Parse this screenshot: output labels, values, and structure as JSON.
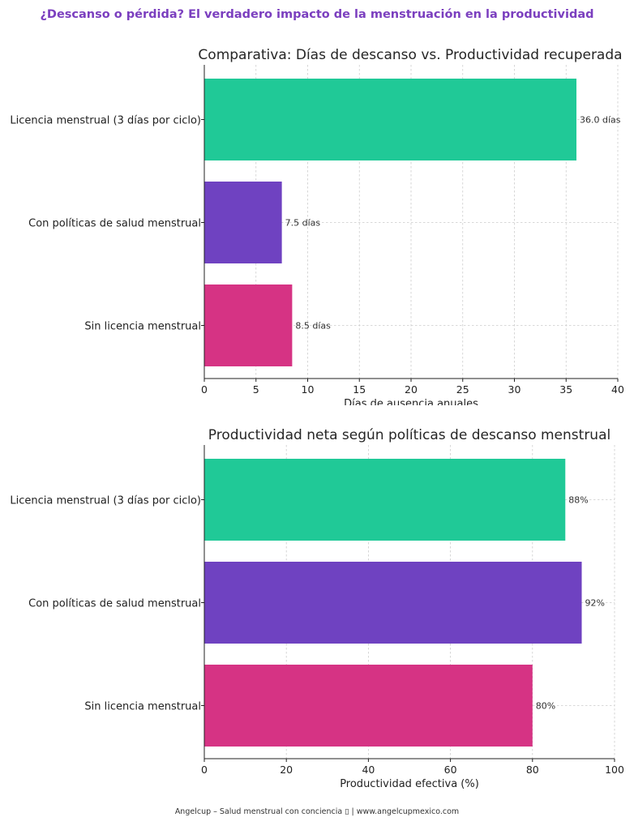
{
  "header": {
    "title": "¿Descanso o pérdida? El verdadero impacto de la menstruación en la productividad"
  },
  "footer": {
    "text": "Angelcup – Salud menstrual con conciencia ▯  |  www.angelcupmexico.com"
  },
  "colors": {
    "title": "#7b3fbf",
    "series": [
      "#20c997",
      "#6f42c1",
      "#d63384"
    ]
  },
  "chart_data": [
    {
      "type": "bar",
      "orientation": "horizontal",
      "title": "Comparativa: Días de descanso vs. Productividad recuperada",
      "xlabel": "Días de ausencia anuales",
      "ylabel": "",
      "categories": [
        "Licencia menstrual (3 días por ciclo)",
        "Con políticas de salud menstrual",
        "Sin licencia menstrual"
      ],
      "values": [
        36.0,
        7.5,
        8.5
      ],
      "data_labels": [
        "36.0 días",
        "7.5 días",
        "8.5 días"
      ],
      "xlim": [
        0,
        40
      ],
      "xticks": [
        0,
        5,
        10,
        15,
        20,
        25,
        30,
        35,
        40
      ],
      "grid": true
    },
    {
      "type": "bar",
      "orientation": "horizontal",
      "title": "Productividad neta según políticas de descanso menstrual",
      "xlabel": "Productividad efectiva (%)",
      "ylabel": "",
      "categories": [
        "Licencia menstrual (3 días por ciclo)",
        "Con políticas de salud menstrual",
        "Sin licencia menstrual"
      ],
      "values": [
        88,
        92,
        80
      ],
      "data_labels": [
        "88%",
        "92%",
        "80%"
      ],
      "xlim": [
        0,
        100
      ],
      "xticks": [
        0,
        20,
        40,
        60,
        80,
        100
      ],
      "grid": true
    }
  ]
}
